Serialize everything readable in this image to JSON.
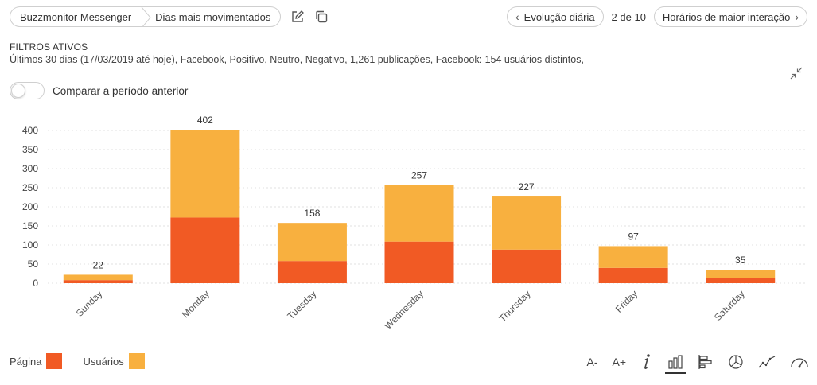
{
  "header": {
    "breadcrumb": [
      "Buzzmonitor Messenger",
      "Dias mais movimentados"
    ],
    "prev_label": "Evolução diária",
    "pager": "2 de 10",
    "next_label": "Horários de maior interação"
  },
  "filters": {
    "title": "FILTROS ATIVOS",
    "text": "Últimos 30 dias (17/03/2019 até hoje), Facebook, Positivo, Neutro, Negativo, 1,261 publicações, Facebook: 154 usuários distintos,"
  },
  "compare": {
    "label": "Comparar a período anterior",
    "enabled": false
  },
  "colors": {
    "pagina": "#f15a24",
    "usuarios": "#f8b03f",
    "grid": "#e2e2e2",
    "text": "#444444"
  },
  "chart_data": {
    "type": "bar",
    "stacked": true,
    "categories": [
      "Sunday",
      "Monday",
      "Tuesday",
      "Wednesday",
      "Thursday",
      "Friday",
      "Saturday"
    ],
    "series": [
      {
        "name": "Página",
        "values": [
          8,
          172,
          58,
          109,
          88,
          40,
          13
        ]
      },
      {
        "name": "Usuários",
        "values": [
          14,
          230,
          100,
          148,
          139,
          57,
          22
        ]
      }
    ],
    "totals": [
      22,
      402,
      158,
      257,
      227,
      97,
      35
    ],
    "yticks": [
      0,
      50,
      100,
      150,
      200,
      250,
      300,
      350,
      400
    ],
    "ylim": [
      0,
      420
    ],
    "grid": true,
    "legend": "bottom-left"
  },
  "legend": {
    "items": [
      "Página",
      "Usuários"
    ]
  },
  "tools": {
    "font_smaller": "A-",
    "font_larger": "A+",
    "icons": [
      "info-icon",
      "bar-chart-icon",
      "horizontal-bar-icon",
      "pie-chart-icon",
      "line-chart-icon",
      "gauge-icon"
    ]
  }
}
